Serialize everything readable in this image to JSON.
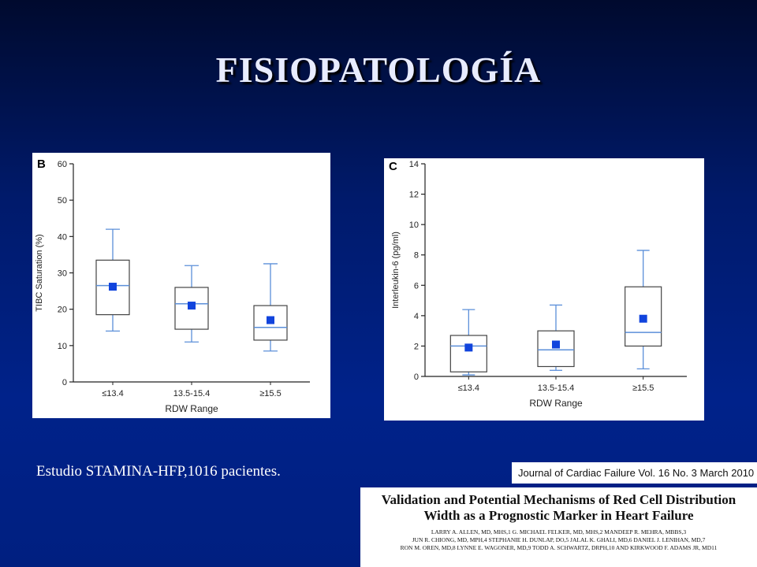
{
  "slide": {
    "title": "FISIOPATOLOGÍA",
    "caption": "Estudio STAMINA-HFP,1016 pacientes.",
    "journal": "Journal of Cardiac Failure Vol. 16 No. 3 March 2010",
    "paper_title_line1": "Validation and Potential Mechanisms of Red Cell Distribution",
    "paper_title_line2": "Width as a Prognostic Marker in Heart Failure",
    "paper_authors_line1": "Larry A. Allen, MD, MHS,1 G. Michael Felker, MD, MHS,2 Mandeep R. Mehra, MBBS,3",
    "paper_authors_line2": "Jun R. Chiong, MD, MPH,4 Stephanie H. Dunlap, DO,5 Jalal K. Ghali, MD,6 Daniel J. Lenihan, MD,7",
    "paper_authors_line3": "Ron M. Oren, MD,8 Lynne E. Wagoner, MD,9 Todd A. Schwartz, DrPH,10 and Kirkwood F. Adams Jr, MD11"
  },
  "colors": {
    "box": "#5b8fd9",
    "mean": "#1144dd",
    "axis": "#222222"
  },
  "chart_data": [
    {
      "type": "box",
      "panel_label": "B",
      "xlabel": "RDW Range",
      "ylabel": "TIBC Saturation (%)",
      "ylim": [
        0,
        60
      ],
      "yticks": [
        0,
        10,
        20,
        30,
        40,
        50,
        60
      ],
      "categories": [
        "≤13.4",
        "13.5-15.4",
        "≥15.5"
      ],
      "boxes": [
        {
          "whisker_low": 14,
          "q1": 18.5,
          "median": 26.5,
          "q3": 33.5,
          "whisker_high": 42,
          "mean": 26.2
        },
        {
          "whisker_low": 11,
          "q1": 14.5,
          "median": 21.5,
          "q3": 26,
          "whisker_high": 32,
          "mean": 21
        },
        {
          "whisker_low": 8.5,
          "q1": 11.5,
          "median": 15,
          "q3": 21,
          "whisker_high": 32.5,
          "mean": 17
        }
      ]
    },
    {
      "type": "box",
      "panel_label": "C",
      "xlabel": "RDW Range",
      "ylabel": "Interleukin-6 (pg/ml)",
      "ylim": [
        0,
        14
      ],
      "yticks": [
        0,
        2,
        4,
        6,
        8,
        10,
        12,
        14
      ],
      "categories": [
        "≤13.4",
        "13.5-15.4",
        "≥15.5"
      ],
      "boxes": [
        {
          "whisker_low": 0.1,
          "q1": 0.3,
          "median": 2.0,
          "q3": 2.7,
          "whisker_high": 4.4,
          "mean": 1.9
        },
        {
          "whisker_low": 0.4,
          "q1": 0.65,
          "median": 1.75,
          "q3": 3.0,
          "whisker_high": 4.7,
          "mean": 2.1
        },
        {
          "whisker_low": 0.5,
          "q1": 2.0,
          "median": 2.9,
          "q3": 5.9,
          "whisker_high": 8.3,
          "mean": 3.8
        }
      ]
    }
  ]
}
